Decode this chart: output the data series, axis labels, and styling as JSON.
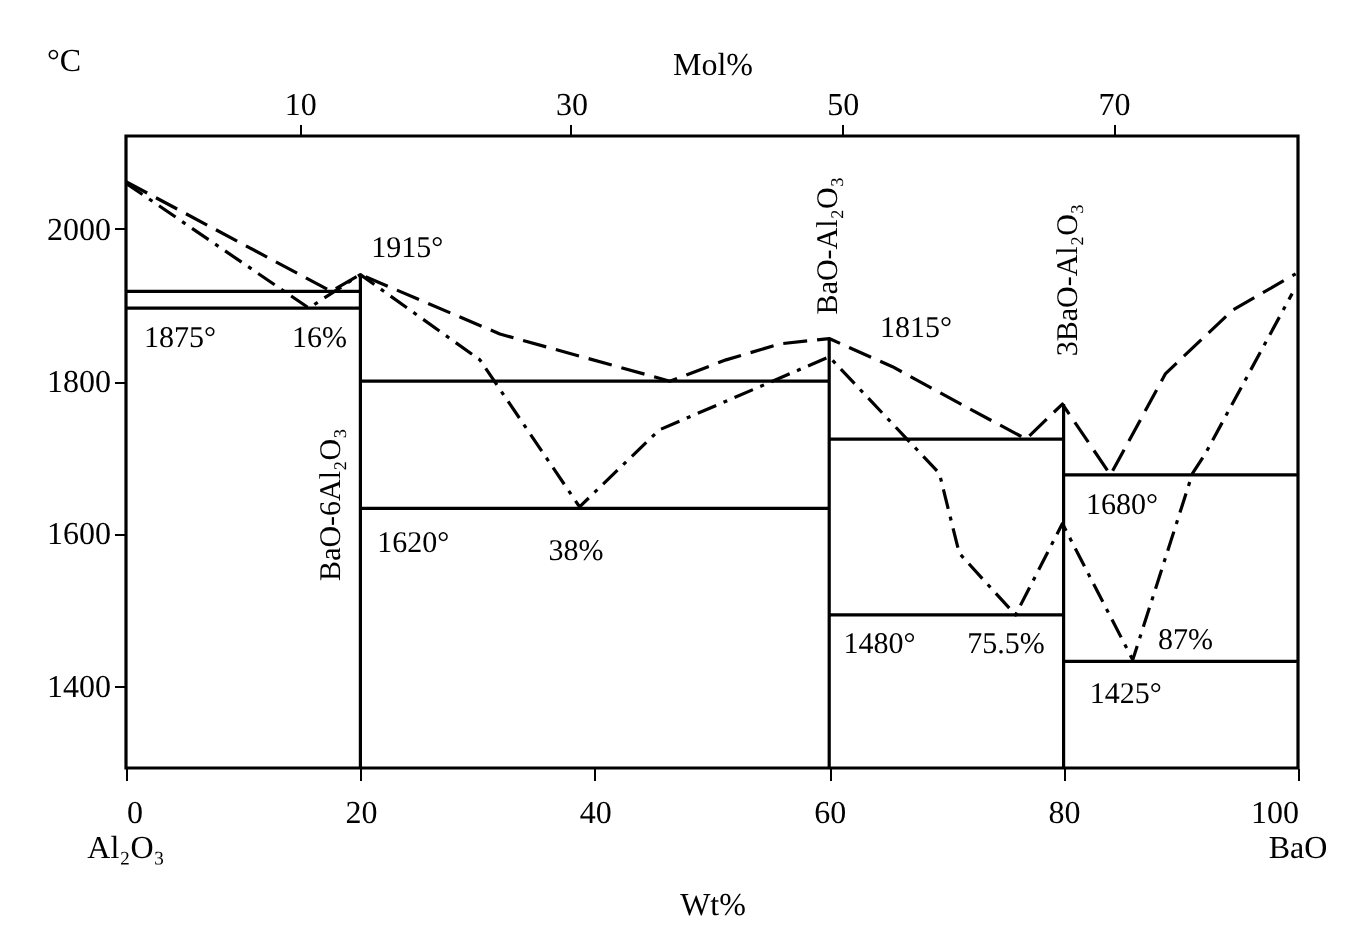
{
  "chart_data": {
    "type": "line",
    "xlabel": "Wt%",
    "ylabel": "°C",
    "x2label": "Mol%",
    "xlim": [
      0,
      100
    ],
    "xticks": [
      0,
      20,
      40,
      60,
      80,
      100
    ],
    "ylim": [
      1292,
      2122
    ],
    "yticks": [
      1400,
      1600,
      1800,
      2000
    ],
    "x2lim": [
      -2.8,
      83.6
    ],
    "x2ticks": [
      10,
      30,
      50,
      70
    ],
    "grid": false,
    "marker": "none",
    "series": [
      {
        "line_style": "dashed",
        "color": "#000000",
        "x": [
          0,
          17.5,
          20,
          31.9,
          46.4,
          51.2,
          55.8,
          60,
          65.4,
          71.7,
          76.8,
          79.9,
          84,
          88.7,
          94.4,
          99.8
        ],
        "values": [
          2062,
          1918,
          1940,
          1862,
          1800,
          1828,
          1849,
          1856,
          1819,
          1766,
          1724,
          1770,
          1677,
          1810,
          1893,
          1941
        ]
      },
      {
        "line_style": "dotted",
        "color": "#000000",
        "x": [
          0,
          15.6,
          20,
          30.2,
          38.7,
          45.5,
          60,
          69.4,
          71.1,
          75.9,
          79.9,
          85.9,
          91,
          92.1,
          99.5
        ],
        "values": [
          2060,
          1896,
          1940,
          1828,
          1635,
          1736,
          1832,
          1679,
          1574,
          1493,
          1613,
          1434,
          1679,
          1705,
          1915
        ]
      },
      {
        "line_style": "solid",
        "color": "#000000",
        "x": [
          0,
          20
        ],
        "values": [
          1918,
          1918
        ]
      },
      {
        "line_style": "solid",
        "color": "#000000",
        "x": [
          0,
          20
        ],
        "values": [
          1896,
          1896
        ]
      },
      {
        "line_style": "solid",
        "color": "#000000",
        "x": [
          20,
          20
        ],
        "values": [
          1940,
          1292
        ]
      },
      {
        "line_style": "solid",
        "color": "#000000",
        "x": [
          20,
          60
        ],
        "values": [
          1800,
          1800
        ]
      },
      {
        "line_style": "solid",
        "color": "#000000",
        "x": [
          20,
          60
        ],
        "values": [
          1633,
          1633
        ]
      },
      {
        "line_style": "solid",
        "color": "#000000",
        "x": [
          60,
          60
        ],
        "values": [
          1856,
          1292
        ]
      },
      {
        "line_style": "solid",
        "color": "#000000",
        "x": [
          60,
          80
        ],
        "values": [
          1724,
          1724
        ]
      },
      {
        "line_style": "solid",
        "color": "#000000",
        "x": [
          60,
          80
        ],
        "values": [
          1493,
          1493
        ]
      },
      {
        "line_style": "solid",
        "color": "#000000",
        "x": [
          80,
          80
        ],
        "values": [
          1770,
          1292
        ]
      },
      {
        "line_style": "solid",
        "color": "#000000",
        "x": [
          80,
          100
        ],
        "values": [
          1677,
          1677
        ]
      },
      {
        "line_style": "solid",
        "color": "#000000",
        "x": [
          80,
          100
        ],
        "values": [
          1432,
          1432
        ]
      }
    ],
    "annotations": [
      "1915°",
      "1875°",
      "16%",
      "BaO-6Al₂O₃",
      "1620°",
      "38%",
      "BaO-Al₂O₃",
      "1815°",
      "3BaO-Al₂O₃",
      "1680°",
      "1480°",
      "75.5%",
      "87%",
      "1425°",
      "Al₂O₃",
      "BaO"
    ]
  }
}
